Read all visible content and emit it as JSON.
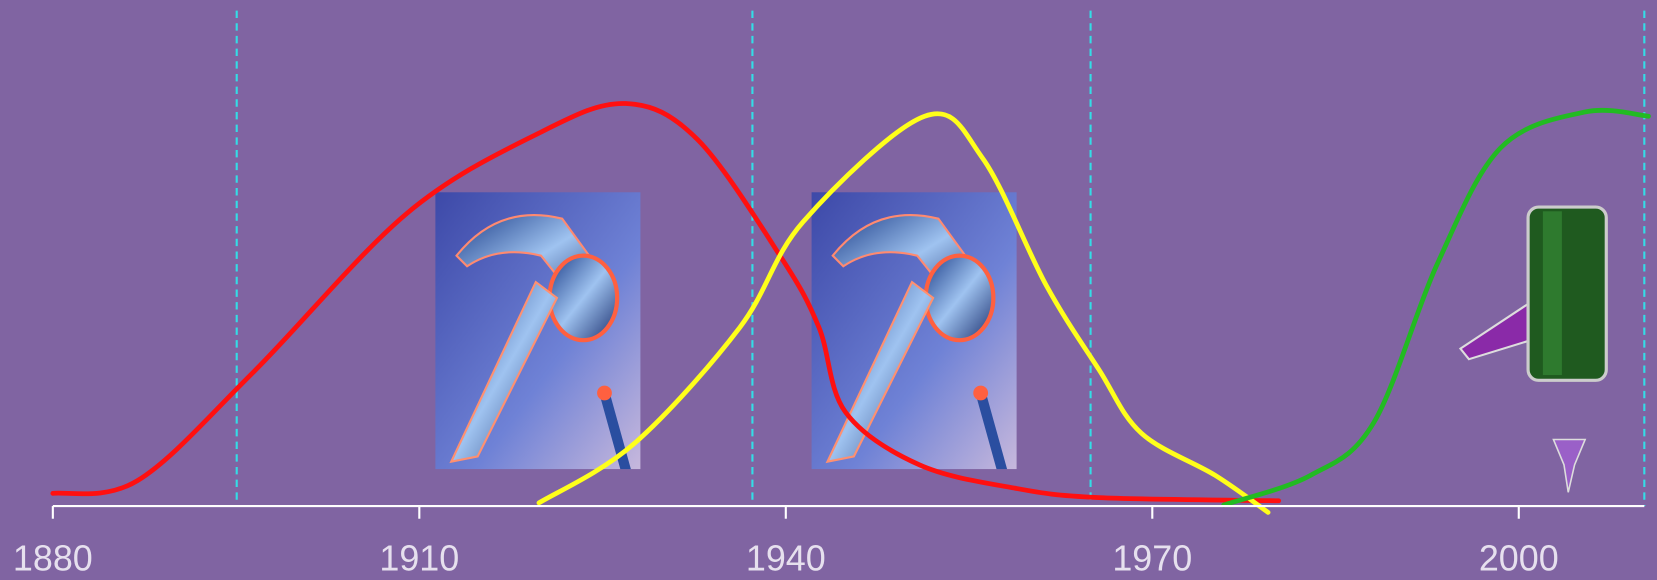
{
  "axis": {
    "ticks": [
      "1880",
      "1910",
      "1940",
      "1970",
      "2000"
    ]
  }
}
